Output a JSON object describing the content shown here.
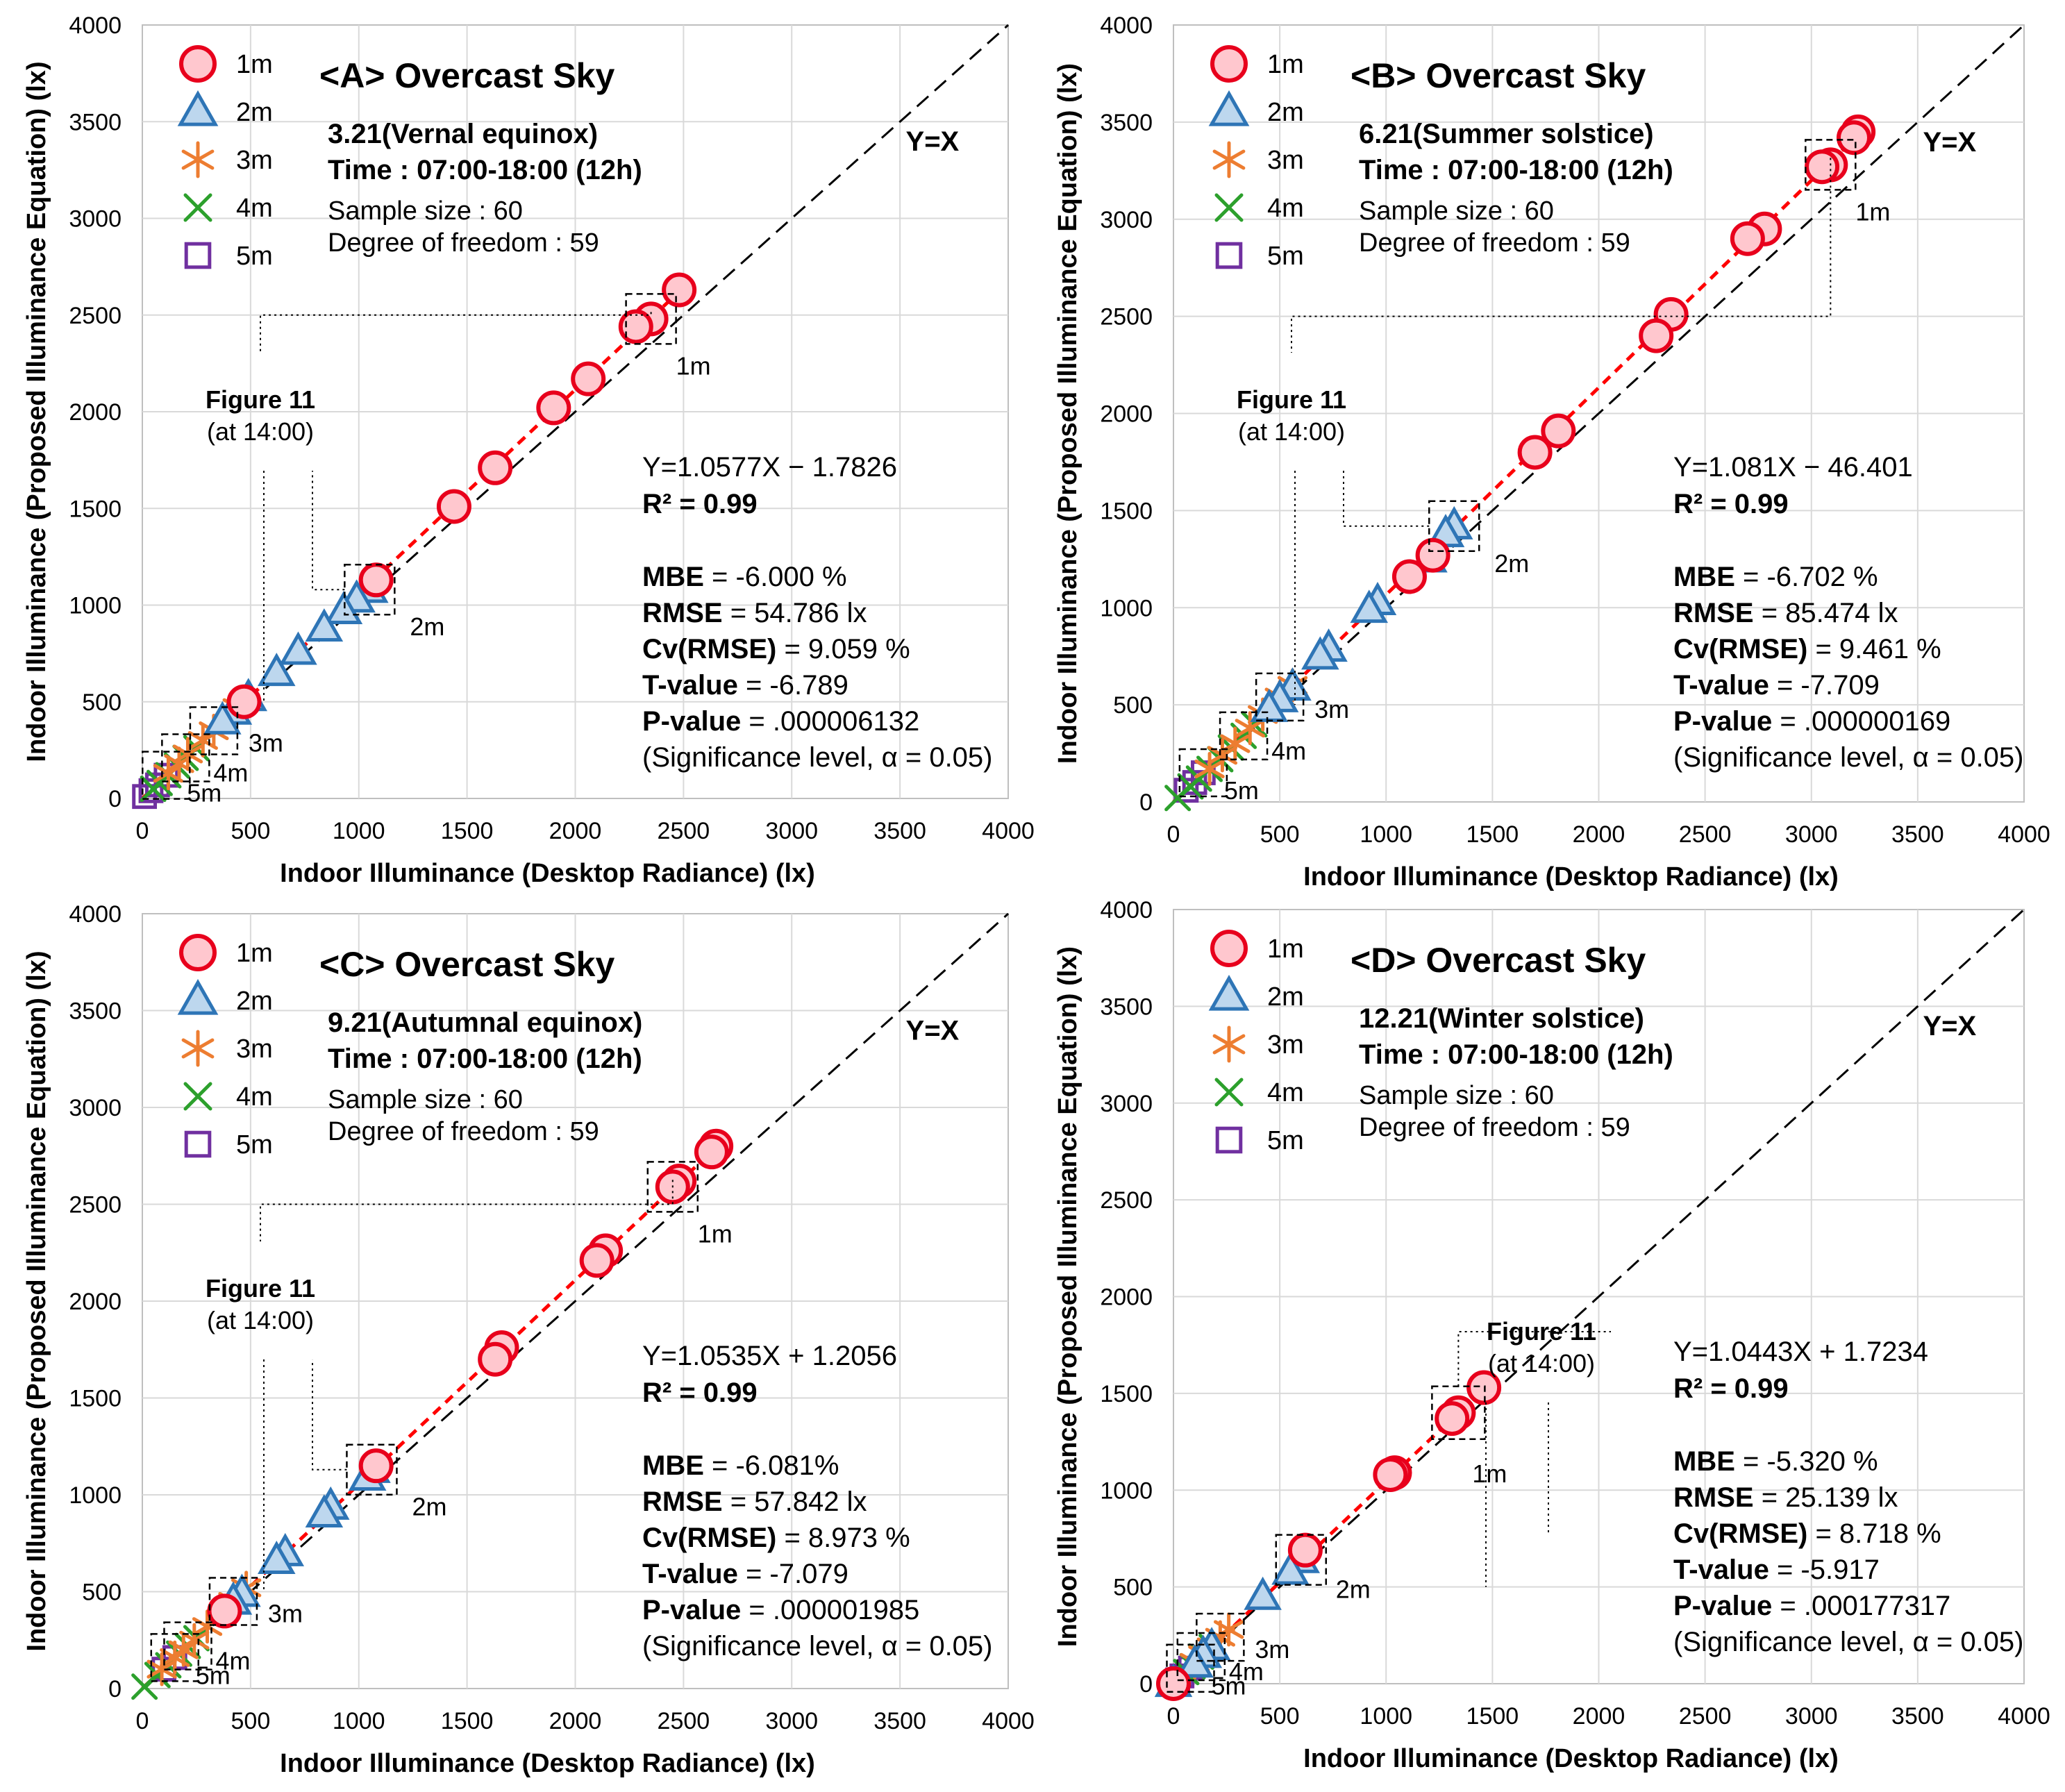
{
  "axis_common": {
    "xlabel": "Indoor Illuminance (Desktop Radiance) (lx)",
    "ylabel": "Indoor Illuminance (Proposed Illuminance Equation) (lx)",
    "ticks": [
      "0",
      "500",
      "1000",
      "1500",
      "2000",
      "2500",
      "3000",
      "3500",
      "4000"
    ],
    "xlim": [
      0,
      4000
    ],
    "ylim": [
      0,
      4000
    ],
    "diagonal_label": "Y=X"
  },
  "legend": {
    "entries": [
      "1m",
      "2m",
      "3m",
      "4m",
      "5m"
    ],
    "colors": [
      "#e8001c",
      "#2e75b6",
      "#ed7d31",
      "#2ca02c",
      "#7030a0"
    ]
  },
  "markers_note": {
    "figure_ref": "Figure 11",
    "figure_time": "(at 14:00)",
    "box_labels": [
      "1m",
      "2m",
      "3m",
      "4m",
      "5m"
    ]
  },
  "panels": [
    {
      "title": "<A> Overcast Sky",
      "date": "3.21(Vernal equinox)",
      "time": "Time : 07:00-18:00 (12h)",
      "sample": "Sample size : 60",
      "dof": "Degree of freedom : 59",
      "equation": "Y=1.0577X − 1.7826",
      "r2_label": "R² = ",
      "r2_value": "0.99",
      "stats": [
        {
          "k": "MBE",
          "v": " = -6.000 %"
        },
        {
          "k": "RMSE",
          "v": " = 54.786 lx"
        },
        {
          "k": "Cv(RMSE)",
          "v": " = 9.059 %"
        },
        {
          "k": "T-value",
          "v": " = -6.789"
        },
        {
          "k": "P-value",
          "v": " = .000006132"
        }
      ],
      "significance": "(Significance level, α = 0.05)"
    },
    {
      "title": "<B> Overcast Sky",
      "date": "6.21(Summer solstice)",
      "time": "Time : 07:00-18:00 (12h)",
      "sample": "Sample size : 60",
      "dof": "Degree of freedom : 59",
      "equation": "Y=1.081X − 46.401",
      "r2_label": "R² = ",
      "r2_value": "0.99",
      "stats": [
        {
          "k": "MBE",
          "v": " = -6.702 %"
        },
        {
          "k": "RMSE",
          "v": " = 85.474 lx"
        },
        {
          "k": "Cv(RMSE)",
          "v": " = 9.461 %"
        },
        {
          "k": "T-value",
          "v": " = -7.709"
        },
        {
          "k": "P-value",
          "v": " = .000000169"
        }
      ],
      "significance": "(Significance level, α = 0.05)"
    },
    {
      "title": "<C> Overcast Sky",
      "date": "9.21(Autumnal equinox)",
      "time": "Time : 07:00-18:00 (12h)",
      "sample": "Sample size : 60",
      "dof": "Degree of freedom : 59",
      "equation": "Y=1.0535X + 1.2056",
      "r2_label": "R² = ",
      "r2_value": "0.99",
      "stats": [
        {
          "k": "MBE",
          "v": " = -6.081%"
        },
        {
          "k": "RMSE",
          "v": " = 57.842 lx"
        },
        {
          "k": "Cv(RMSE)",
          "v": " = 8.973 %"
        },
        {
          "k": "T-value",
          "v": " = -7.079"
        },
        {
          "k": "P-value",
          "v": " = .000001985"
        }
      ],
      "significance": "(Significance level, α = 0.05)"
    },
    {
      "title": "<D> Overcast Sky",
      "date": "12.21(Winter solstice)",
      "time": "Time : 07:00-18:00 (12h)",
      "sample": "Sample size : 60",
      "dof": "Degree of freedom : 59",
      "equation": "Y=1.0443X + 1.7234",
      "r2_label": "R² = ",
      "r2_value": "0.99",
      "stats": [
        {
          "k": "MBE",
          "v": " = -5.320 %"
        },
        {
          "k": "RMSE",
          "v": " = 25.139 lx"
        },
        {
          "k": "Cv(RMSE)",
          "v": " = 8.718 %"
        },
        {
          "k": "T-value",
          "v": " = -5.917"
        },
        {
          "k": "P-value",
          "v": " = .000177317"
        }
      ],
      "significance": "(Significance level, α = 0.05)"
    }
  ],
  "chart_data": [
    {
      "type": "scatter",
      "title": "<A> Overcast Sky",
      "xlabel": "Indoor Illuminance (Desktop Radiance) (lx)",
      "ylabel": "Indoor Illuminance (Proposed Illuminance Equation) (lx)",
      "xlim": [
        0,
        4000
      ],
      "ylim": [
        0,
        4000
      ],
      "fit": {
        "slope": 1.0577,
        "intercept": -1.7826
      },
      "series": [
        {
          "name": "1m",
          "x": [
            2480,
            2350,
            2280,
            2060,
            1900,
            1630,
            1440,
            1080,
            470
          ],
          "y": [
            2630,
            2480,
            2440,
            2170,
            2020,
            1710,
            1510,
            1130,
            500
          ]
        },
        {
          "name": "2m",
          "x": [
            1050,
            990,
            930,
            840,
            720,
            620,
            490,
            420,
            370
          ],
          "y": [
            1080,
            1030,
            970,
            880,
            760,
            650,
            520,
            450,
            400
          ]
        },
        {
          "name": "3m",
          "x": [
            440,
            330,
            280,
            210,
            170,
            120
          ],
          "y": [
            470,
            350,
            300,
            230,
            180,
            130
          ]
        },
        {
          "name": "4m",
          "x": [
            250,
            200,
            160,
            120,
            80,
            50
          ],
          "y": [
            260,
            210,
            170,
            120,
            80,
            50
          ]
        },
        {
          "name": "5m",
          "x": [
            110,
            70,
            40,
            10
          ],
          "y": [
            120,
            70,
            40,
            10
          ]
        }
      ]
    },
    {
      "type": "scatter",
      "title": "<B> Overcast Sky",
      "xlabel": "Indoor Illuminance (Desktop Radiance) (lx)",
      "ylabel": "Indoor Illuminance (Proposed Illuminance Equation) (lx)",
      "xlim": [
        0,
        4000
      ],
      "ylim": [
        0,
        4000
      ],
      "fit": {
        "slope": 1.081,
        "intercept": -46.401
      },
      "series": [
        {
          "name": "1m",
          "x": [
            3220,
            3200,
            3090,
            3050,
            2780,
            2700,
            2340,
            2270,
            1810,
            1700,
            1220,
            1110
          ],
          "y": [
            3450,
            3420,
            3280,
            3270,
            2950,
            2900,
            2510,
            2400,
            1910,
            1800,
            1270,
            1160
          ]
        },
        {
          "name": "2m",
          "x": [
            1320,
            1280,
            1200,
            960,
            920,
            730,
            690,
            560,
            500,
            450
          ],
          "y": [
            1420,
            1380,
            1250,
            1030,
            990,
            790,
            750,
            590,
            530,
            480
          ]
        },
        {
          "name": "3m",
          "x": [
            560,
            500,
            420,
            360,
            290,
            230,
            170
          ],
          "y": [
            600,
            540,
            450,
            380,
            300,
            240,
            170
          ]
        },
        {
          "name": "4m",
          "x": [
            380,
            330,
            270,
            220,
            170,
            120,
            80,
            20
          ],
          "y": [
            400,
            340,
            280,
            220,
            170,
            120,
            80,
            20
          ]
        },
        {
          "name": "5m",
          "x": [
            140,
            100,
            60
          ],
          "y": [
            150,
            100,
            60
          ]
        }
      ]
    },
    {
      "type": "scatter",
      "title": "<C> Overcast Sky",
      "xlabel": "Indoor Illuminance (Desktop Radiance) (lx)",
      "ylabel": "Indoor Illuminance (Proposed Illuminance Equation) (lx)",
      "xlim": [
        0,
        4000
      ],
      "ylim": [
        0,
        4000
      ],
      "fit": {
        "slope": 1.0535,
        "intercept": 1.2056
      },
      "series": [
        {
          "name": "1m",
          "x": [
            2650,
            2630,
            2480,
            2450,
            2140,
            2100,
            1660,
            1630,
            1080,
            380
          ],
          "y": [
            2800,
            2770,
            2620,
            2590,
            2260,
            2210,
            1760,
            1700,
            1150,
            400
          ]
        },
        {
          "name": "2m",
          "x": [
            1060,
            1040,
            870,
            840,
            660,
            620,
            460,
            420
          ],
          "y": [
            1130,
            1090,
            940,
            900,
            700,
            660,
            490,
            450
          ]
        },
        {
          "name": "3m",
          "x": [
            480,
            420,
            300,
            240,
            190,
            150,
            90
          ],
          "y": [
            520,
            450,
            320,
            250,
            200,
            160,
            100
          ]
        },
        {
          "name": "4m",
          "x": [
            250,
            210,
            170,
            120,
            70,
            10
          ],
          "y": [
            260,
            220,
            180,
            120,
            70,
            10
          ]
        },
        {
          "name": "5m",
          "x": [
            150,
            100
          ],
          "y": [
            160,
            100
          ]
        }
      ]
    },
    {
      "type": "scatter",
      "title": "<D> Overcast Sky",
      "xlabel": "Indoor Illuminance (Desktop Radiance) (lx)",
      "ylabel": "Indoor Illuminance (Proposed Illuminance Equation) (lx)",
      "xlim": [
        0,
        4000
      ],
      "ylim": [
        0,
        4000
      ],
      "fit": {
        "slope": 1.0443,
        "intercept": 1.7234
      },
      "series": [
        {
          "name": "1m",
          "x": [
            1460,
            1340,
            1310,
            1040,
            1020,
            620,
            0
          ],
          "y": [
            1530,
            1400,
            1370,
            1090,
            1080,
            690,
            0
          ]
        },
        {
          "name": "2m",
          "x": [
            600,
            550,
            420,
            180,
            140,
            100,
            0
          ],
          "y": [
            640,
            580,
            450,
            190,
            150,
            100,
            0
          ]
        },
        {
          "name": "3m",
          "x": [
            260,
            220,
            180,
            140,
            100
          ],
          "y": [
            280,
            240,
            190,
            150,
            110
          ]
        },
        {
          "name": "4m",
          "x": [
            180,
            130,
            90,
            60
          ],
          "y": [
            190,
            140,
            90,
            60
          ]
        },
        {
          "name": "5m",
          "x": [
            80,
            40,
            20,
            0
          ],
          "y": [
            80,
            40,
            20,
            0
          ]
        }
      ]
    }
  ]
}
